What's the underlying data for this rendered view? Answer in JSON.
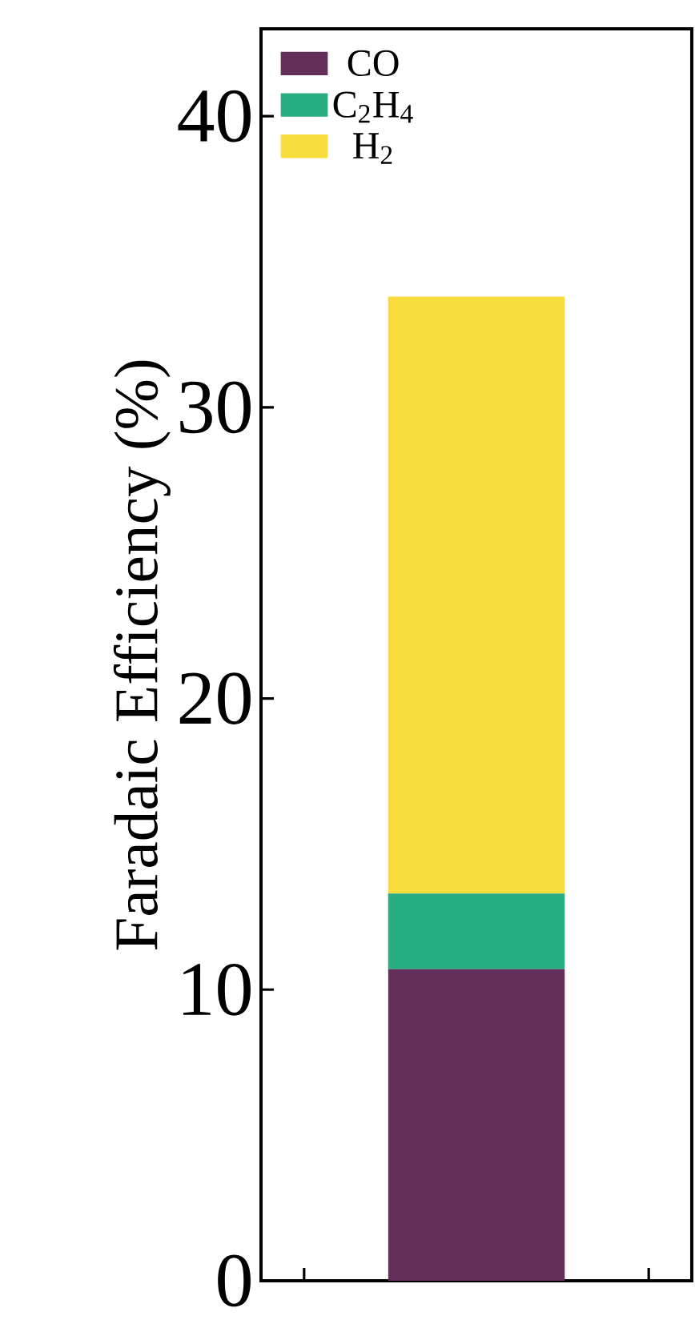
{
  "chart_data": {
    "type": "bar",
    "stacked": true,
    "ylabel": "Faradaic Efficiency (%)",
    "categories": [
      null
    ],
    "series": [
      {
        "name": "CO",
        "color": "#632e5a",
        "values": [
          10.7
        ]
      },
      {
        "name": "C$_{2}$H$_{4}$",
        "color": "#27ad81",
        "values": [
          2.6
        ]
      },
      {
        "name": "H$_{2}$",
        "color": "#f7dc3c",
        "values": [
          20.5
        ]
      }
    ],
    "ylim": [
      0,
      43
    ],
    "yticks": [
      0,
      10,
      20,
      30,
      40
    ],
    "legend": "top left"
  }
}
